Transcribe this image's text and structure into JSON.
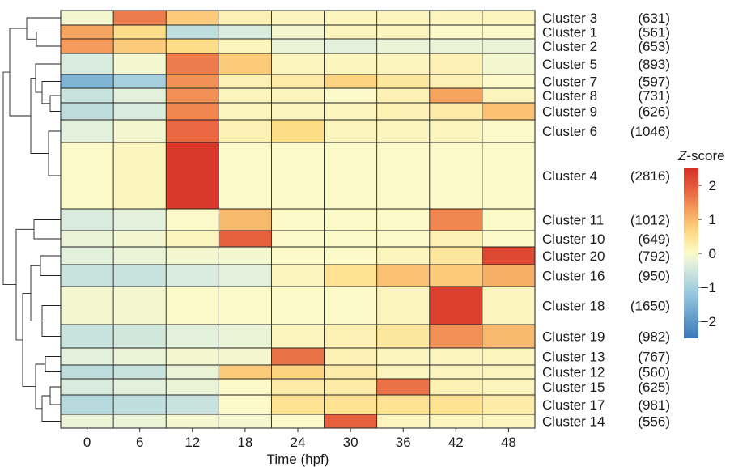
{
  "chart_data": {
    "type": "heatmap",
    "xlabel": "Time (hpf)",
    "x": [
      "0",
      "6",
      "12",
      "18",
      "24",
      "30",
      "36",
      "42",
      "48"
    ],
    "rows": [
      {
        "name": "Cluster 3",
        "count": "(631)",
        "values": [
          -0.1,
          1.6,
          0.8,
          0.2,
          0.1,
          0.1,
          0.1,
          0.1,
          0.1
        ]
      },
      {
        "name": "Cluster 1",
        "count": "(561)",
        "values": [
          1.2,
          0.6,
          -0.7,
          -0.4,
          -0.1,
          0.1,
          0.1,
          0.0,
          0.0
        ]
      },
      {
        "name": "Cluster 2",
        "count": "(653)",
        "values": [
          1.3,
          0.8,
          0.6,
          0.1,
          -0.2,
          -0.3,
          -0.2,
          -0.2,
          -0.2
        ]
      },
      {
        "name": "Cluster 5",
        "count": "(893)",
        "values": [
          -0.4,
          -0.1,
          1.6,
          0.8,
          0.1,
          0.1,
          0.1,
          0.2,
          -0.1
        ]
      },
      {
        "name": "Cluster 7",
        "count": "(597)",
        "values": [
          -1.5,
          -1.0,
          1.4,
          0.2,
          0.3,
          0.7,
          0.4,
          0.2,
          0.0
        ]
      },
      {
        "name": "Cluster 8",
        "count": "(731)",
        "values": [
          -0.6,
          -0.3,
          1.4,
          0.1,
          0.1,
          0.0,
          0.2,
          1.2,
          0.1
        ]
      },
      {
        "name": "Cluster 9",
        "count": "(626)",
        "values": [
          -0.7,
          -0.4,
          1.5,
          0.1,
          0.1,
          0.1,
          0.2,
          0.3,
          0.9
        ]
      },
      {
        "name": "Cluster 6",
        "count": "(1046)",
        "values": [
          -0.3,
          -0.1,
          1.8,
          0.2,
          0.6,
          0.1,
          0.1,
          0.1,
          0.0
        ]
      },
      {
        "name": "Cluster 4",
        "count": "(2816)",
        "values": [
          0.0,
          0.1,
          2.4,
          0.0,
          0.0,
          0.0,
          0.0,
          0.0,
          0.0
        ]
      },
      {
        "name": "Cluster 11",
        "count": "(1012)",
        "values": [
          -0.4,
          -0.3,
          0.0,
          1.0,
          0.0,
          0.0,
          0.0,
          1.5,
          0.0
        ]
      },
      {
        "name": "Cluster 10",
        "count": "(649)",
        "values": [
          -0.2,
          -0.1,
          0.1,
          1.9,
          0.0,
          0.0,
          0.0,
          0.2,
          0.0
        ]
      },
      {
        "name": "Cluster 20",
        "count": "(792)",
        "values": [
          -0.3,
          -0.2,
          -0.1,
          -0.1,
          0.0,
          0.0,
          0.1,
          0.4,
          2.2
        ]
      },
      {
        "name": "Cluster 16",
        "count": "(950)",
        "values": [
          -0.6,
          -0.6,
          -0.4,
          -0.3,
          0.1,
          0.5,
          0.9,
          0.8,
          1.1
        ]
      },
      {
        "name": "Cluster 18",
        "count": "(1650)",
        "values": [
          -0.1,
          -0.1,
          0.0,
          0.0,
          0.0,
          0.0,
          0.1,
          2.3,
          0.1
        ]
      },
      {
        "name": "Cluster 19",
        "count": "(982)",
        "values": [
          -0.6,
          -0.5,
          -0.3,
          -0.2,
          0.1,
          0.2,
          0.4,
          1.4,
          1.0
        ]
      },
      {
        "name": "Cluster 13",
        "count": "(767)",
        "values": [
          -0.3,
          -0.2,
          -0.1,
          -0.1,
          1.7,
          0.2,
          0.1,
          0.1,
          0.1
        ]
      },
      {
        "name": "Cluster 12",
        "count": "(560)",
        "values": [
          -0.7,
          -0.6,
          -0.2,
          0.8,
          0.7,
          0.3,
          0.1,
          0.1,
          0.1
        ]
      },
      {
        "name": "Cluster 15",
        "count": "(625)",
        "values": [
          -0.4,
          -0.3,
          -0.2,
          0.0,
          0.3,
          0.3,
          1.7,
          0.2,
          0.1
        ]
      },
      {
        "name": "Cluster 17",
        "count": "(981)",
        "values": [
          -0.8,
          -0.7,
          -0.6,
          0.0,
          0.5,
          0.5,
          0.5,
          0.5,
          0.3
        ]
      },
      {
        "name": "Cluster 14",
        "count": "(556)",
        "values": [
          -0.2,
          -0.2,
          -0.1,
          -0.1,
          0.0,
          1.9,
          0.1,
          0.1,
          0.1
        ]
      }
    ],
    "colorbar": {
      "title": "Z-score",
      "ticks": [
        "2",
        "1",
        "0",
        "−1",
        "−2"
      ],
      "tick_values": [
        2,
        1,
        0,
        -1,
        -2
      ],
      "range": [
        -2.5,
        2.5
      ],
      "colors": {
        "low": "#3b78b8",
        "mid": "#fbfbc4",
        "high": "#d93b2b"
      }
    },
    "dendrogram": "hierarchical clustering of rows (left)"
  }
}
